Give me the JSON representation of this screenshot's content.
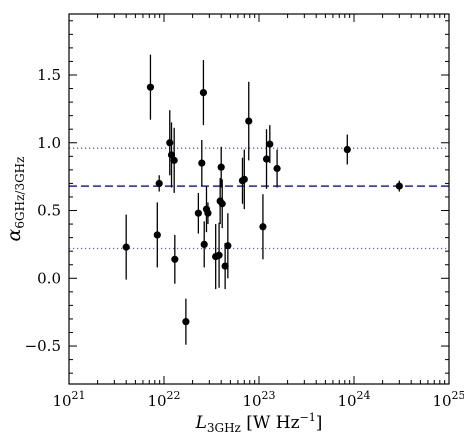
{
  "chart_data": {
    "type": "scatter",
    "xscale": "log",
    "xlim": [
      1e+21,
      1e+25
    ],
    "ylim": [
      -0.78,
      1.95
    ],
    "xlabel": {
      "base": "L",
      "sub": "3GHz",
      "unit_open": " [W Hz",
      "unit_sup": "−1",
      "unit_close": "]"
    },
    "ylabel": {
      "base": "α",
      "sub": "6GHz/3GHz"
    },
    "x_ticks": [
      {
        "value": 1e+21,
        "base": "10",
        "exp": "21"
      },
      {
        "value": 1e+22,
        "base": "10",
        "exp": "22"
      },
      {
        "value": 1e+23,
        "base": "10",
        "exp": "23"
      },
      {
        "value": 1e+24,
        "base": "10",
        "exp": "24"
      },
      {
        "value": 1e+25,
        "base": "10",
        "exp": "25"
      }
    ],
    "y_ticks": [
      {
        "value": -0.5,
        "label": "−0.5"
      },
      {
        "value": 0.0,
        "label": "0.0"
      },
      {
        "value": 0.5,
        "label": "0.5"
      },
      {
        "value": 1.0,
        "label": "1.0"
      },
      {
        "value": 1.5,
        "label": "1.5"
      }
    ],
    "reference_lines": [
      {
        "style": "dashed",
        "y": 0.68,
        "color": "#1f1fd6"
      },
      {
        "style": "dotted",
        "y": 0.96,
        "color": "#5a5ae0"
      },
      {
        "style": "dotted",
        "y": 0.22,
        "color": "#5a5ae0"
      }
    ],
    "points": [
      {
        "x": 4e+21,
        "y": 0.23,
        "err": 0.24
      },
      {
        "x": 7.2e+21,
        "y": 1.41,
        "err": 0.24
      },
      {
        "x": 8.5e+21,
        "y": 0.32,
        "err": 0.24
      },
      {
        "x": 8.9e+21,
        "y": 0.7,
        "err": 0.06
      },
      {
        "x": 1.15e+22,
        "y": 1.0,
        "err": 0.24
      },
      {
        "x": 1.2e+22,
        "y": 0.91,
        "err": 0.24
      },
      {
        "x": 1.28e+22,
        "y": 0.87,
        "err": 0.24
      },
      {
        "x": 1.3e+22,
        "y": 0.14,
        "err": 0.18
      },
      {
        "x": 1.7e+22,
        "y": -0.32,
        "err": 0.17
      },
      {
        "x": 2.3e+22,
        "y": 0.48,
        "err": 0.15
      },
      {
        "x": 2.5e+22,
        "y": 0.85,
        "err": 0.17
      },
      {
        "x": 2.6e+22,
        "y": 1.37,
        "err": 0.24
      },
      {
        "x": 2.65e+22,
        "y": 0.25,
        "err": 0.17
      },
      {
        "x": 2.8e+22,
        "y": 0.51,
        "err": 0.17
      },
      {
        "x": 2.9e+22,
        "y": 0.48,
        "err": 0.08
      },
      {
        "x": 3.5e+22,
        "y": 0.16,
        "err": 0.24
      },
      {
        "x": 3.8e+22,
        "y": 0.17,
        "err": 0.24
      },
      {
        "x": 3.9e+22,
        "y": 0.57,
        "err": 0.17
      },
      {
        "x": 4e+22,
        "y": 0.82,
        "err": 0.15
      },
      {
        "x": 4.1e+22,
        "y": 0.55,
        "err": 0.18
      },
      {
        "x": 4.4e+22,
        "y": 0.09,
        "err": 0.17
      },
      {
        "x": 4.7e+22,
        "y": 0.24,
        "err": 0.24
      },
      {
        "x": 6.7e+22,
        "y": 0.72,
        "err": 0.17
      },
      {
        "x": 7e+22,
        "y": 0.73,
        "err": 0.22
      },
      {
        "x": 7.8e+22,
        "y": 1.16,
        "err": 0.29
      },
      {
        "x": 1.1e+23,
        "y": 0.38,
        "err": 0.24
      },
      {
        "x": 1.2e+23,
        "y": 0.88,
        "err": 0.22
      },
      {
        "x": 1.3e+23,
        "y": 0.99,
        "err": 0.14
      },
      {
        "x": 1.55e+23,
        "y": 0.81,
        "err": 0.14
      },
      {
        "x": 8.5e+23,
        "y": 0.95,
        "err": 0.11
      },
      {
        "x": 3e+24,
        "y": 0.68,
        "err": 0.04
      }
    ]
  }
}
